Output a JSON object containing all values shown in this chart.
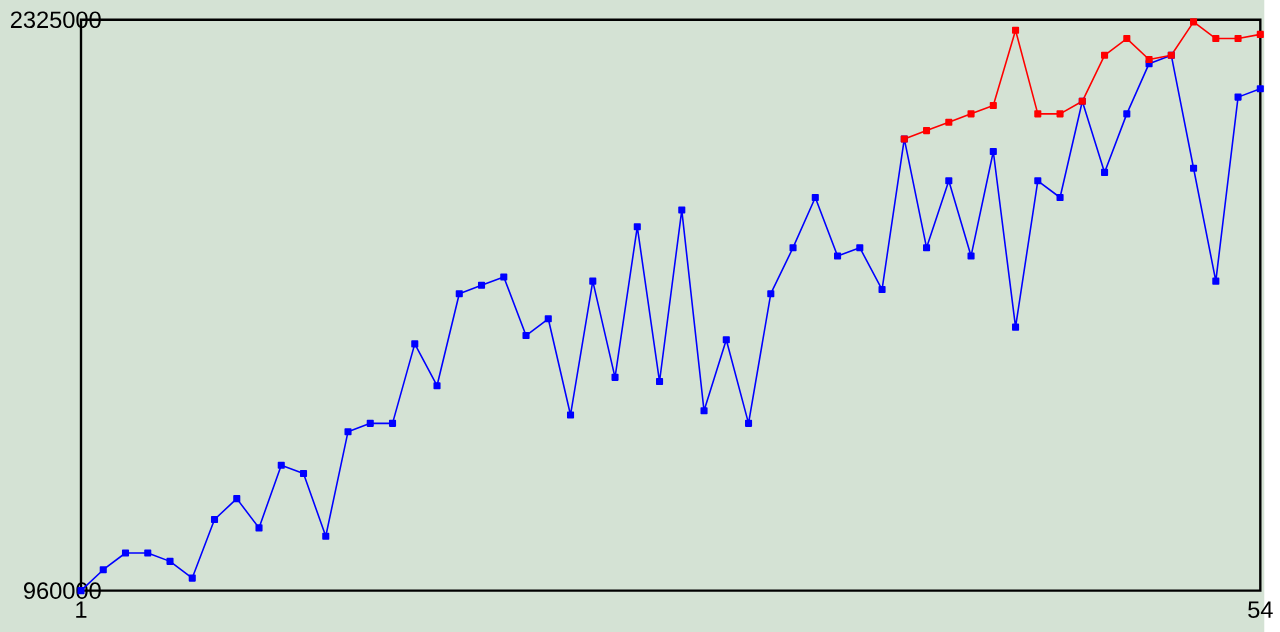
{
  "chart_data": {
    "type": "line",
    "xlim": [
      1,
      54
    ],
    "ylim": [
      960000,
      2325000
    ],
    "xticks": [
      1,
      54
    ],
    "yticks": [
      960000,
      2325000
    ],
    "marker": "square",
    "line_style": "solid",
    "series": [
      {
        "color": "#0000ff",
        "x": [
          1,
          2,
          3,
          4,
          5,
          6,
          7,
          8,
          9,
          10,
          11,
          12,
          13,
          14,
          15,
          16,
          17,
          18,
          19,
          20,
          21,
          22,
          23,
          24,
          25,
          26,
          27,
          28,
          29,
          30,
          31,
          32,
          33,
          34,
          35,
          36,
          37,
          38,
          39,
          40,
          41,
          42,
          43,
          44,
          45,
          46,
          47,
          48,
          49,
          50,
          51,
          52,
          53,
          54
        ],
        "values": [
          960000,
          1010000,
          1050000,
          1050000,
          1030000,
          990000,
          1130000,
          1180000,
          1110000,
          1260000,
          1240000,
          1090000,
          1340000,
          1360000,
          1360000,
          1550000,
          1450000,
          1670000,
          1690000,
          1710000,
          1570000,
          1610000,
          1380000,
          1700000,
          1470000,
          1830000,
          1460000,
          1870000,
          1390000,
          1560000,
          1360000,
          1670000,
          1780000,
          1900000,
          1760000,
          1780000,
          1680000,
          2040000,
          1780000,
          1940000,
          1760000,
          2010000,
          1590000,
          1940000,
          1900000,
          2130000,
          1960000,
          2100000,
          2220000,
          2240000,
          1970000,
          1700000,
          2140000,
          2160000
        ]
      },
      {
        "color": "#ff0000",
        "x": [
          38,
          39,
          40,
          41,
          42,
          43,
          44,
          45,
          46,
          47,
          48,
          49,
          50,
          51,
          52,
          53,
          54
        ],
        "values": [
          2040000,
          2060000,
          2080000,
          2100000,
          2120000,
          2300000,
          2100000,
          2100000,
          2130000,
          2240000,
          2280000,
          2230000,
          2240000,
          2320000,
          2280000,
          2280000,
          2290000
        ]
      }
    ]
  }
}
